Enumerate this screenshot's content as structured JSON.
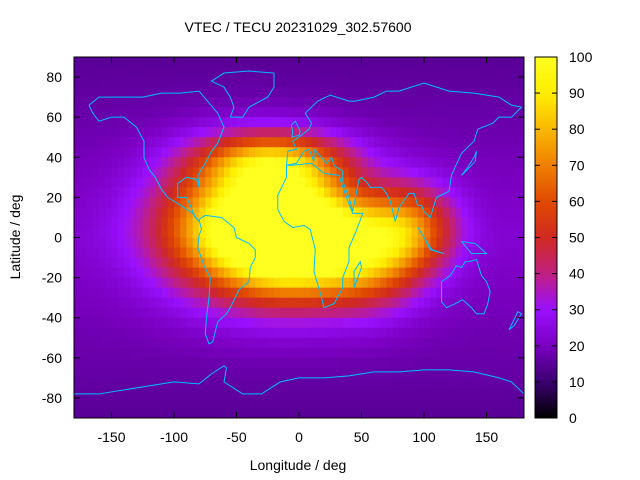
{
  "chart_data": {
    "type": "heatmap",
    "title": "VTEC / TECU 20231029_302.57600",
    "xlabel": "Longitude / deg",
    "ylabel": "Latitude / deg",
    "xlim": [
      -180,
      180
    ],
    "ylim": [
      -90,
      90
    ],
    "xticks": [
      -150,
      -100,
      -50,
      0,
      50,
      100,
      150
    ],
    "yticks": [
      -80,
      -60,
      -40,
      -20,
      0,
      20,
      40,
      60,
      80
    ],
    "colorbar": {
      "min": 0,
      "max": 100,
      "ticks": [
        0,
        10,
        20,
        30,
        40,
        50,
        60,
        70,
        80,
        90,
        100
      ],
      "palette": [
        "#000000",
        "#3a0070",
        "#7a00c0",
        "#9a10ff",
        "#c02080",
        "#d02a20",
        "#e04a00",
        "#f08000",
        "#f8b800",
        "#ffee00",
        "#ffff20"
      ]
    },
    "features": [
      {
        "lon": -45,
        "lat": 5,
        "peak": 95,
        "sigma_lon": 45,
        "sigma_lat": 22
      },
      {
        "lon": 0,
        "lat": 0,
        "peak": 85,
        "sigma_lon": 35,
        "sigma_lat": 20
      },
      {
        "lon": 55,
        "lat": -8,
        "peak": 58,
        "sigma_lon": 30,
        "sigma_lat": 18
      },
      {
        "lon": 90,
        "lat": 5,
        "peak": 45,
        "sigma_lon": 25,
        "sigma_lat": 15
      },
      {
        "lon": -20,
        "lat": 38,
        "peak": 55,
        "sigma_lon": 40,
        "sigma_lat": 10
      }
    ],
    "background": 22,
    "coastline_color": "#00c0ff"
  }
}
